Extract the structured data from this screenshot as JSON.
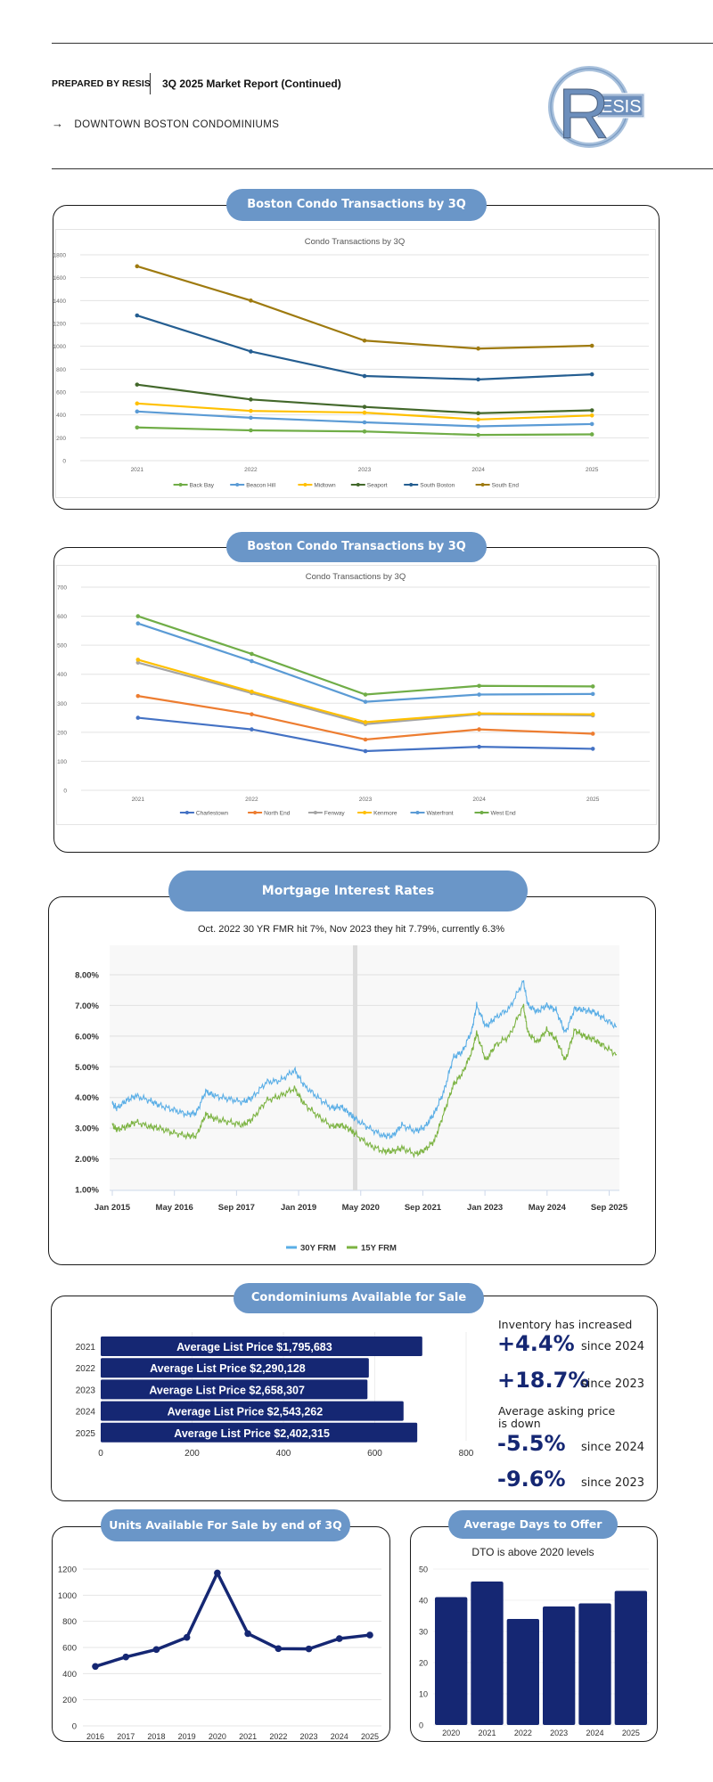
{
  "header": {
    "prepared_by": "PREPARED BY RESIS",
    "report_title": "3Q 2025 Market Report (Continued)",
    "arrow_icon": "→",
    "subtitle": "DOWNTOWN BOSTON CONDOMINIUMS",
    "logo_letter": "R",
    "logo_text": "ESIS"
  },
  "colors": {
    "pill": "#6a96c8",
    "navy": "#152773",
    "series30": "#5aaee6",
    "series15": "#7cb342"
  },
  "sections": {
    "transactions_1_title": "Boston Condo Transactions by 3Q",
    "transactions_2_title": "Boston Condo Transactions by 3Q",
    "mortgage_title": "Mortgage Interest Rates",
    "condos_title": "Condominiums Available for Sale",
    "units_title": "Units Available For Sale by end of 3Q",
    "dto_title": "Average Days to Offer"
  },
  "stats": {
    "inventory_label": "Inventory has increased",
    "inv_2024_value": "+4.4%",
    "inv_2024_label": "since 2024",
    "inv_2023_value": "+18.7%",
    "inv_2023_label": "since 2023",
    "price_label_1": "Average asking price",
    "price_label_2": "is down",
    "price_2024_value": "-5.5%",
    "price_2024_label": "since 2024",
    "price_2023_value": "-9.6%",
    "price_2023_label": "since 2023"
  },
  "chart_data": [
    {
      "id": "transactions1",
      "type": "line",
      "title": "Condo Transactions by 3Q",
      "categories": [
        "2021",
        "2022",
        "2023",
        "2024",
        "2025"
      ],
      "ylim": [
        0,
        1800
      ],
      "yticks": [
        "0",
        "200",
        "400",
        "600",
        "800",
        "1000",
        "1200",
        "1400",
        "1600",
        "1800"
      ],
      "grid": true,
      "legend": "bottom",
      "series": [
        {
          "name": "Back Bay",
          "color": "#70ad47",
          "values": [
            290,
            265,
            255,
            225,
            230
          ]
        },
        {
          "name": "Beacon Hill",
          "color": "#5b9bd5",
          "values": [
            430,
            375,
            335,
            300,
            320
          ]
        },
        {
          "name": "Midtown",
          "color": "#ffc000",
          "values": [
            500,
            435,
            420,
            360,
            395
          ]
        },
        {
          "name": "Seaport",
          "color": "#43682b",
          "values": [
            665,
            535,
            470,
            415,
            440
          ]
        },
        {
          "name": "South Boston",
          "color": "#255e91",
          "values": [
            1270,
            955,
            740,
            710,
            755
          ]
        },
        {
          "name": "South End",
          "color": "#9e7a0f",
          "values": [
            1700,
            1400,
            1050,
            980,
            1005
          ]
        }
      ]
    },
    {
      "id": "transactions2",
      "type": "line",
      "title": "Condo Transactions by 3Q",
      "categories": [
        "2021",
        "2022",
        "2023",
        "2024",
        "2025"
      ],
      "ylim": [
        0,
        700
      ],
      "yticks": [
        "0",
        "100",
        "200",
        "300",
        "400",
        "500",
        "600",
        "700"
      ],
      "grid": true,
      "legend": "bottom",
      "series": [
        {
          "name": "Charlestown",
          "color": "#4472c4",
          "values": [
            250,
            210,
            135,
            150,
            143
          ]
        },
        {
          "name": "North End",
          "color": "#ed7d31",
          "values": [
            325,
            262,
            175,
            210,
            195
          ]
        },
        {
          "name": "Fenway",
          "color": "#a5a5a5",
          "values": [
            440,
            335,
            228,
            262,
            258
          ]
        },
        {
          "name": "Kenmore",
          "color": "#ffc000",
          "values": [
            450,
            340,
            235,
            265,
            262
          ]
        },
        {
          "name": "Waterfront",
          "color": "#5b9bd5",
          "values": [
            575,
            445,
            305,
            330,
            332
          ]
        },
        {
          "name": "West End",
          "color": "#70ad47",
          "values": [
            600,
            470,
            330,
            360,
            358
          ]
        }
      ]
    },
    {
      "id": "mortgage",
      "type": "line",
      "title": "Oct. 2022 30 YR FMR hit 7%, Nov 2023 they hit 7.79%, currently 6.3%",
      "xticks": [
        "Jan 2015",
        "May 2016",
        "Sep 2017",
        "Jan 2019",
        "May 2020",
        "Sep 2021",
        "Jan 2023",
        "May 2024",
        "Sep 2025"
      ],
      "xlim": [
        2015.0,
        2025.8
      ],
      "ylim": [
        1,
        8.9
      ],
      "yticks": [
        "1.00%",
        "2.00%",
        "3.00%",
        "4.00%",
        "5.00%",
        "6.00%",
        "7.00%",
        "8.00%"
      ],
      "grid": true,
      "legend": "bottom",
      "highlight_x": 2020.2,
      "series": [
        {
          "name": "30Y FRM",
          "color": "#5aaee6",
          "x": [
            2015.0,
            2015.1,
            2015.3,
            2015.5,
            2015.8,
            2016.0,
            2016.3,
            2016.6,
            2016.8,
            2017.0,
            2017.2,
            2017.5,
            2017.8,
            2018.0,
            2018.3,
            2018.6,
            2018.9,
            2019.1,
            2019.4,
            2019.7,
            2019.9,
            2020.1,
            2020.2,
            2020.5,
            2020.8,
            2021.0,
            2021.2,
            2021.5,
            2021.7,
            2021.9,
            2022.1,
            2022.3,
            2022.5,
            2022.7,
            2022.8,
            2023.0,
            2023.2,
            2023.5,
            2023.8,
            2023.9,
            2024.1,
            2024.3,
            2024.5,
            2024.7,
            2024.9,
            2025.1,
            2025.3,
            2025.5,
            2025.8
          ],
          "y": [
            3.8,
            3.65,
            3.9,
            4.05,
            3.9,
            3.75,
            3.6,
            3.45,
            3.5,
            4.2,
            4.05,
            3.95,
            3.85,
            4.0,
            4.5,
            4.55,
            4.9,
            4.4,
            4.0,
            3.65,
            3.7,
            3.45,
            3.3,
            3.0,
            2.75,
            2.75,
            3.1,
            2.9,
            3.05,
            3.5,
            4.2,
            5.3,
            5.5,
            6.2,
            7.0,
            6.3,
            6.6,
            6.9,
            7.79,
            7.0,
            6.8,
            7.0,
            6.85,
            6.1,
            6.9,
            6.85,
            6.8,
            6.6,
            6.3
          ]
        },
        {
          "name": "15Y FRM",
          "color": "#7cb342",
          "x": [
            2015.0,
            2015.1,
            2015.3,
            2015.5,
            2015.8,
            2016.0,
            2016.3,
            2016.6,
            2016.8,
            2017.0,
            2017.2,
            2017.5,
            2017.8,
            2018.0,
            2018.3,
            2018.6,
            2018.9,
            2019.1,
            2019.4,
            2019.7,
            2019.9,
            2020.1,
            2020.2,
            2020.5,
            2020.8,
            2021.0,
            2021.2,
            2021.5,
            2021.7,
            2021.9,
            2022.1,
            2022.3,
            2022.5,
            2022.7,
            2022.8,
            2023.0,
            2023.2,
            2023.5,
            2023.8,
            2023.9,
            2024.1,
            2024.3,
            2024.5,
            2024.7,
            2024.9,
            2025.1,
            2025.3,
            2025.5,
            2025.8
          ],
          "y": [
            3.1,
            2.95,
            3.05,
            3.2,
            3.05,
            3.0,
            2.85,
            2.75,
            2.75,
            3.45,
            3.3,
            3.2,
            3.1,
            3.3,
            3.9,
            4.05,
            4.3,
            3.8,
            3.4,
            3.05,
            3.1,
            2.95,
            2.8,
            2.45,
            2.25,
            2.25,
            2.35,
            2.15,
            2.3,
            2.6,
            3.5,
            4.4,
            4.8,
            5.5,
            6.1,
            5.2,
            5.7,
            6.0,
            7.0,
            6.1,
            5.8,
            6.2,
            5.9,
            5.2,
            6.2,
            6.0,
            5.9,
            5.7,
            5.4
          ]
        }
      ]
    },
    {
      "id": "listprice",
      "type": "bar",
      "orientation": "horizontal",
      "categories": [
        "2021",
        "2022",
        "2023",
        "2024",
        "2025"
      ],
      "values": [
        704,
        587,
        584,
        663,
        693
      ],
      "labels": [
        "Average List Price $1,795,683",
        "Average List Price $2,290,128",
        "Average List Price $2,658,307",
        "Average List Price $2,543,262",
        "Average List Price $2,402,315"
      ],
      "xlim": [
        0,
        800
      ],
      "xticks": [
        "0",
        "200",
        "400",
        "600",
        "800"
      ],
      "color": "#152773"
    },
    {
      "id": "units",
      "type": "line",
      "categories": [
        "2016",
        "2017",
        "2018",
        "2019",
        "2020",
        "2021",
        "2022",
        "2023",
        "2024",
        "2025"
      ],
      "values": [
        455,
        527,
        584,
        677,
        1170,
        706,
        591,
        589,
        668,
        695
      ],
      "ylim": [
        0,
        1200
      ],
      "yticks": [
        "0",
        "200",
        "400",
        "600",
        "800",
        "1000",
        "1200"
      ],
      "grid": true,
      "color": "#152773"
    },
    {
      "id": "dto",
      "type": "bar",
      "title": "DTO is above 2020 levels",
      "categories": [
        "2020",
        "2021",
        "2022",
        "2023",
        "2024",
        "2025"
      ],
      "values": [
        41,
        46,
        34,
        38,
        39,
        43
      ],
      "ylim": [
        0,
        50
      ],
      "yticks": [
        "0",
        "10",
        "20",
        "30",
        "40",
        "50"
      ],
      "color": "#152773"
    }
  ]
}
